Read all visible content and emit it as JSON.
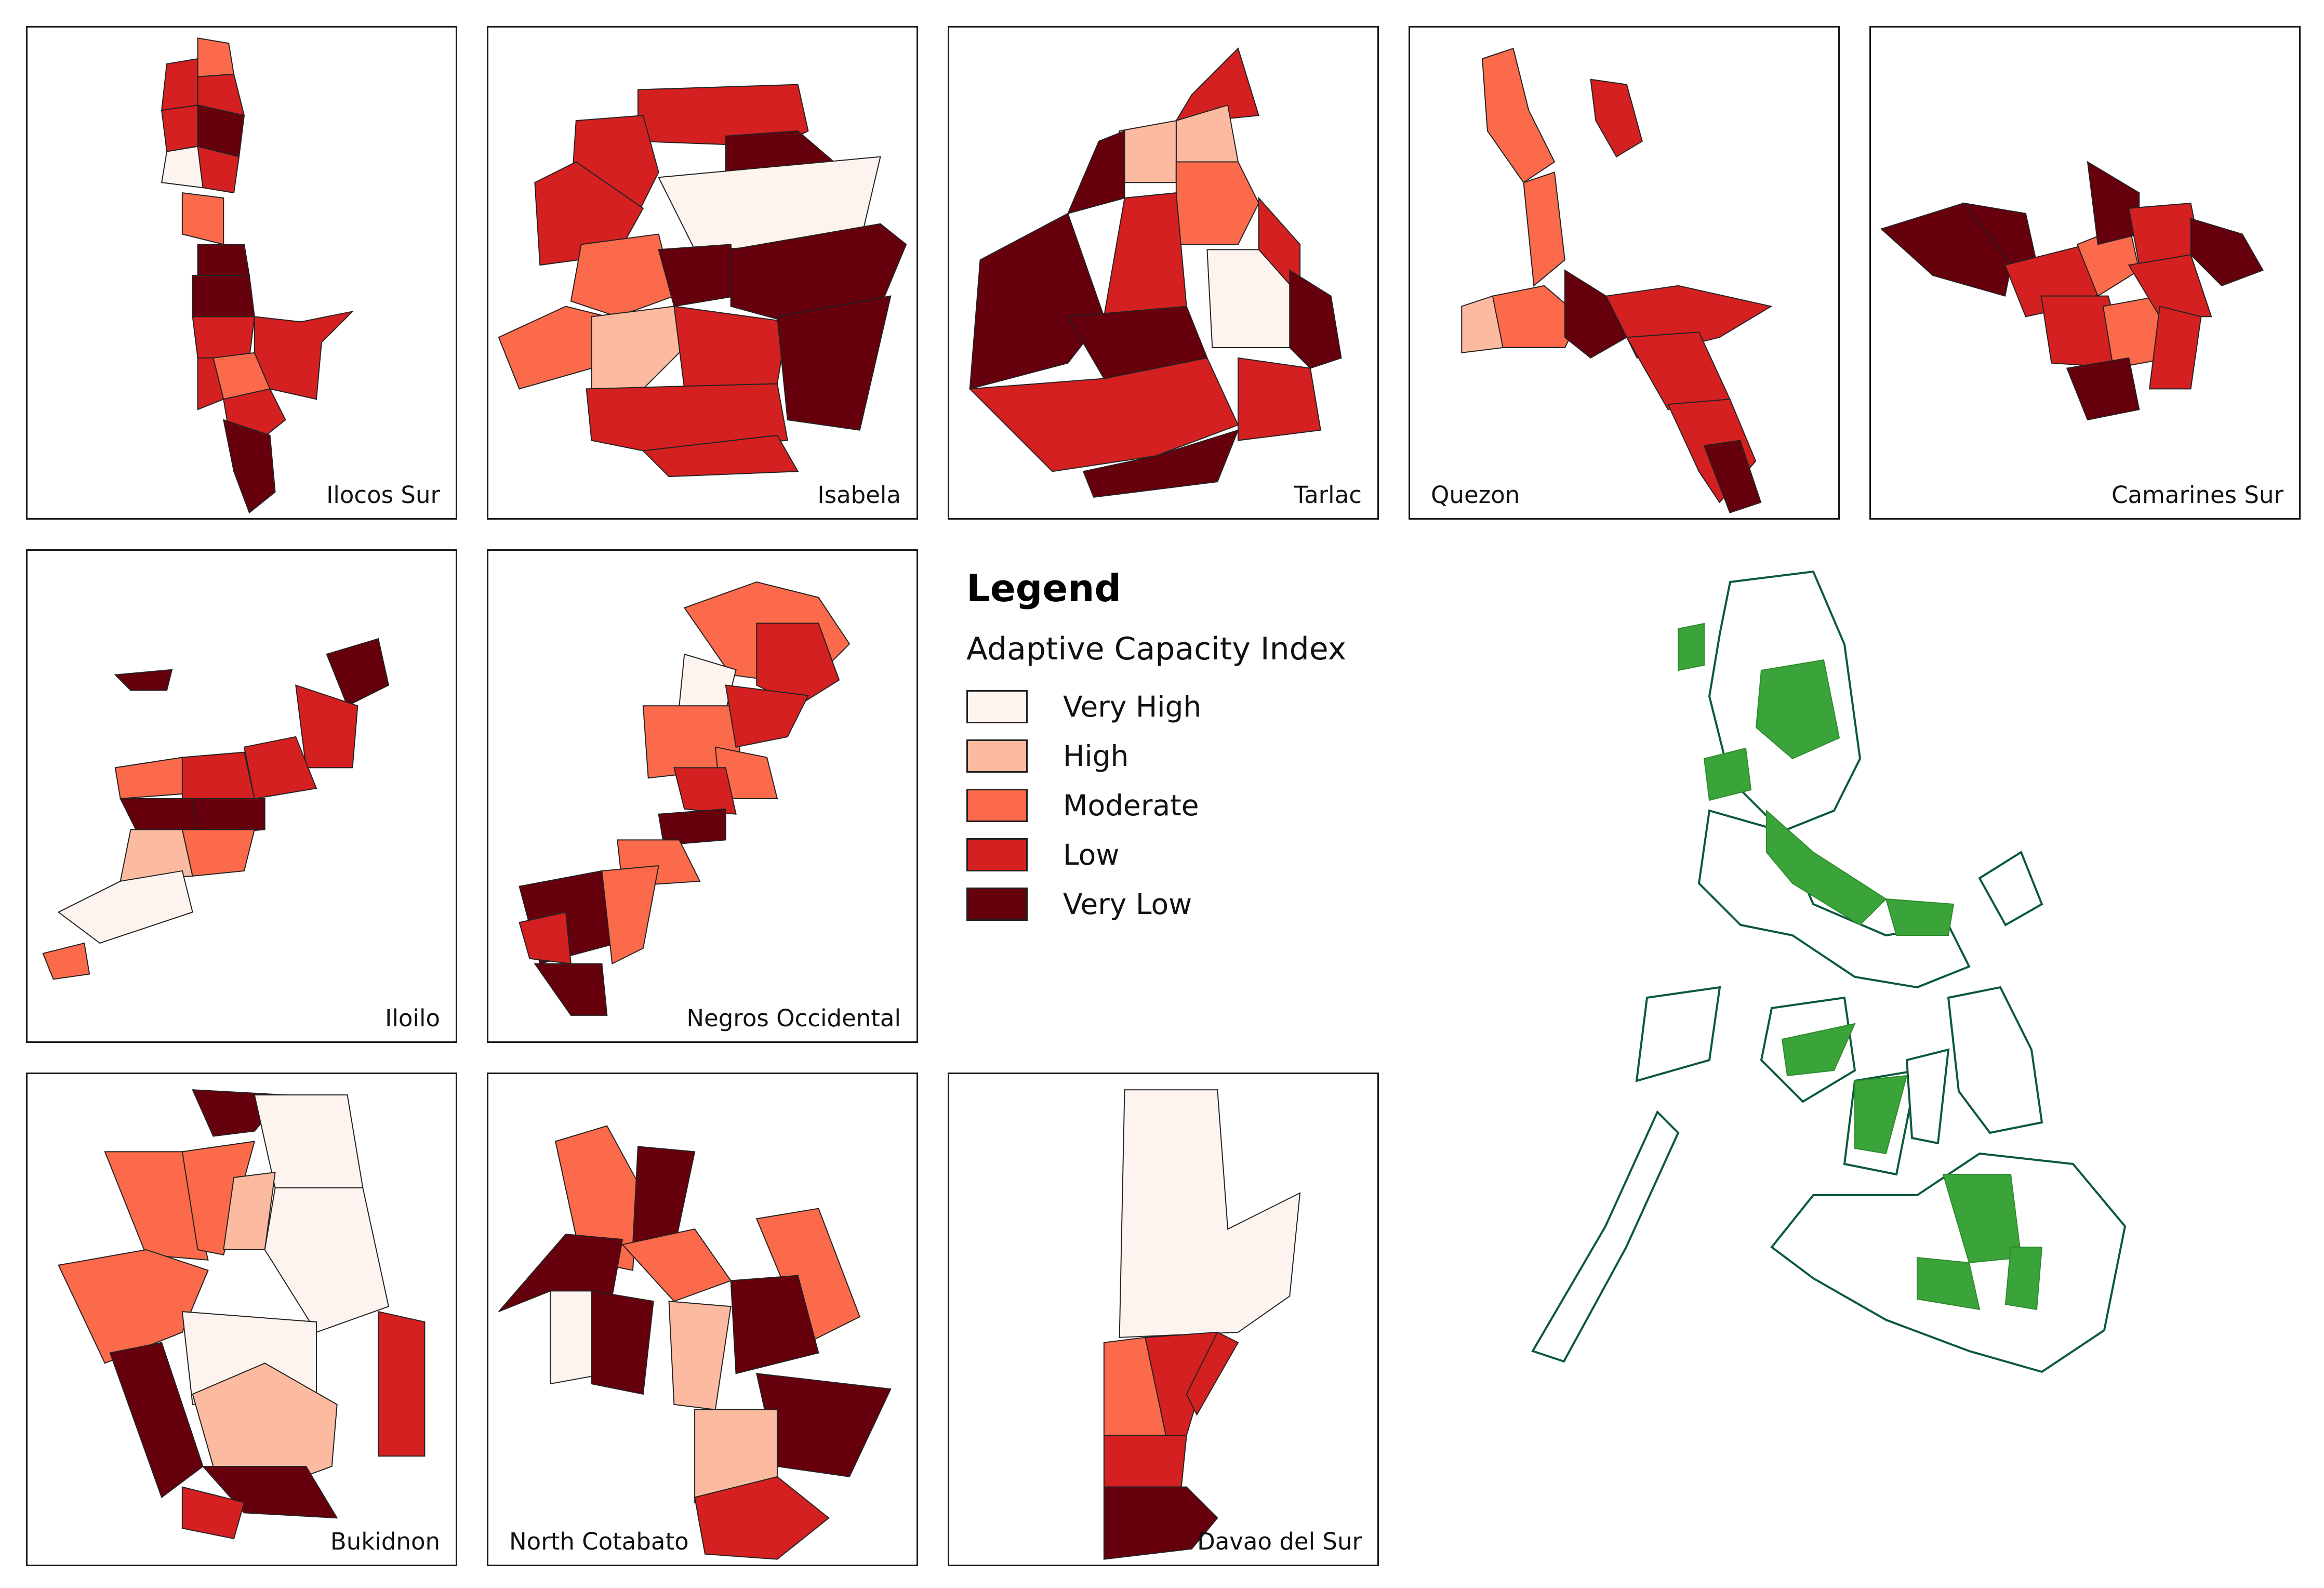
{
  "panels": [
    {
      "id": "ilocos-sur",
      "name": "Ilocos Sur",
      "label_align": "right"
    },
    {
      "id": "isabela",
      "name": "Isabela",
      "label_align": "right"
    },
    {
      "id": "tarlac",
      "name": "Tarlac",
      "label_align": "right"
    },
    {
      "id": "quezon",
      "name": "Quezon",
      "label_align": "left"
    },
    {
      "id": "camarines-sur",
      "name": "Camarines Sur",
      "label_align": "right"
    },
    {
      "id": "iloilo",
      "name": "Iloilo",
      "label_align": "right"
    },
    {
      "id": "negros-occidental",
      "name": "Negros Occidental",
      "label_align": "right"
    },
    {
      "id": "bukidnon",
      "name": "Bukidnon",
      "label_align": "right"
    },
    {
      "id": "north-cotabato",
      "name": "North Cotabato",
      "label_align": "left"
    },
    {
      "id": "davao-del-sur",
      "name": "Davao del Sur",
      "label_align": "right"
    }
  ],
  "legend": {
    "title": "Legend",
    "subtitle": "Adaptive Capacity Index",
    "classes": [
      {
        "label": "Very High",
        "color": "#fef4ef"
      },
      {
        "label": "High",
        "color": "#fcbba1"
      },
      {
        "label": "Moderate",
        "color": "#fb6a4a"
      },
      {
        "label": "Low",
        "color": "#d42020"
      },
      {
        "label": "Very Low",
        "color": "#67000d"
      }
    ]
  },
  "overview": {
    "outline_color": "#0b5a3a",
    "highlight_color": "#3aa33a"
  }
}
